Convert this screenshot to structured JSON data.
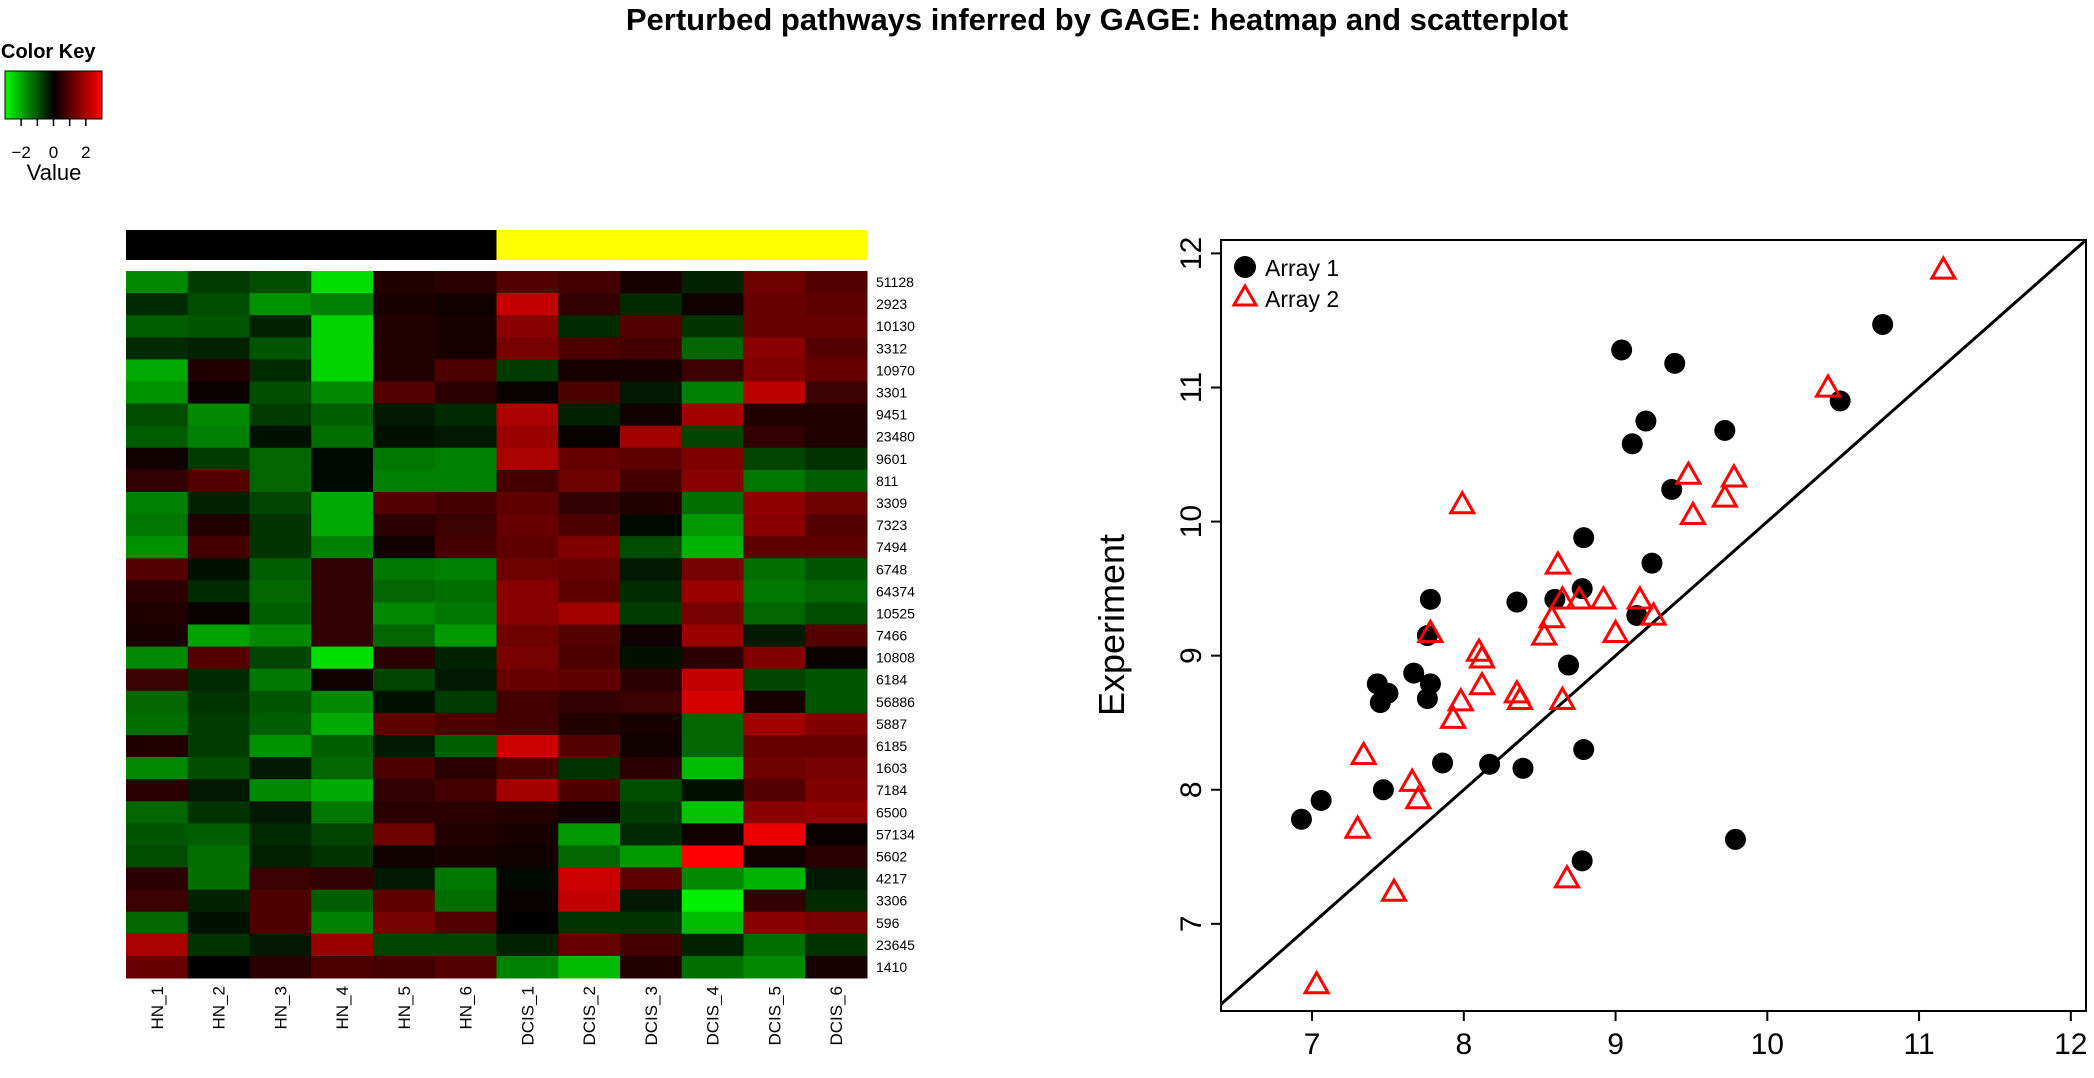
{
  "title": "Perturbed pathways inferred by GAGE: heatmap and scatterplot",
  "colors": {
    "low": "#00ff00",
    "mid": "#000000",
    "high": "#ff0000",
    "group_hn": "#000000",
    "group_dcis": "#ffff00",
    "array1": "#000000",
    "array2": "#ff0000"
  },
  "chart_data": [
    {
      "type": "heatmap",
      "color_key": {
        "title": "Color Key",
        "label": "Value",
        "ticks": [
          "−2",
          "0",
          "2"
        ],
        "tick_values": [
          -2,
          0,
          2
        ],
        "range": [
          -3,
          3
        ]
      },
      "columns": [
        "HN_1",
        "HN_2",
        "HN_3",
        "HN_4",
        "HN_5",
        "HN_6",
        "DCIS_1",
        "DCIS_2",
        "DCIS_3",
        "DCIS_4",
        "DCIS_5",
        "DCIS_6"
      ],
      "column_groups": [
        "HN",
        "HN",
        "HN",
        "HN",
        "HN",
        "HN",
        "DCIS",
        "DCIS",
        "DCIS",
        "DCIS",
        "DCIS",
        "DCIS"
      ],
      "rows": [
        "51128",
        "2923",
        "10130",
        "3312",
        "10970",
        "3301",
        "9451",
        "23480",
        "9601",
        "811",
        "3309",
        "7323",
        "7494",
        "6748",
        "64374",
        "10525",
        "7466",
        "10808",
        "6184",
        "56886",
        "5887",
        "6185",
        "1603",
        "7184",
        "6500",
        "57134",
        "5602",
        "4217",
        "3306",
        "596",
        "23645",
        "1410"
      ],
      "values": [
        [
          -1.6,
          -0.7,
          -0.9,
          -2.6,
          0.4,
          0.5,
          1.0,
          0.8,
          0.3,
          -0.4,
          1.3,
          1.0
        ],
        [
          -0.5,
          -0.9,
          -1.7,
          -1.5,
          0.3,
          0.2,
          2.3,
          0.6,
          -0.5,
          0.2,
          1.2,
          1.1
        ],
        [
          -1.1,
          -1.0,
          -0.4,
          -2.5,
          0.4,
          0.3,
          1.6,
          -0.5,
          1.0,
          -0.6,
          1.2,
          1.2
        ],
        [
          -0.5,
          -0.4,
          -1.0,
          -2.5,
          0.4,
          0.3,
          1.4,
          0.9,
          0.8,
          -1.2,
          1.6,
          1.0
        ],
        [
          -2.0,
          0.4,
          -0.5,
          -2.5,
          0.4,
          0.9,
          -0.7,
          0.3,
          0.3,
          0.7,
          1.5,
          1.2
        ],
        [
          -1.7,
          0.1,
          -0.9,
          -1.6,
          1.0,
          0.5,
          0.1,
          0.9,
          -0.3,
          -1.5,
          2.2,
          0.7
        ],
        [
          -0.9,
          -1.6,
          -0.7,
          -1.1,
          -0.3,
          -0.5,
          2.0,
          -0.4,
          0.2,
          1.9,
          0.4,
          0.4
        ],
        [
          -1.1,
          -1.5,
          -0.2,
          -1.3,
          -0.2,
          -0.3,
          1.8,
          0.1,
          1.9,
          -0.8,
          0.6,
          0.4
        ],
        [
          0.2,
          -0.7,
          -1.2,
          -0.1,
          -1.4,
          -1.5,
          2.0,
          1.2,
          1.1,
          1.5,
          -0.8,
          -0.6
        ],
        [
          0.6,
          1.0,
          -1.2,
          -0.1,
          -1.5,
          -1.5,
          0.8,
          1.3,
          0.8,
          1.6,
          -1.4,
          -1.1
        ],
        [
          -1.5,
          -0.4,
          -0.8,
          -2.0,
          1.0,
          0.8,
          1.1,
          0.6,
          0.4,
          -1.3,
          1.7,
          1.3
        ],
        [
          -1.4,
          0.4,
          -0.6,
          -2.0,
          0.5,
          0.7,
          1.2,
          0.9,
          -0.1,
          -1.8,
          1.6,
          1.0
        ],
        [
          -1.7,
          0.8,
          -0.6,
          -1.5,
          0.2,
          0.8,
          1.1,
          1.5,
          -0.9,
          -2.1,
          1.1,
          1.1
        ],
        [
          1.0,
          -0.2,
          -1.1,
          0.6,
          -1.4,
          -1.5,
          1.3,
          1.2,
          -0.3,
          1.4,
          -1.3,
          -1.0
        ],
        [
          0.5,
          -0.5,
          -1.2,
          0.6,
          -1.2,
          -1.3,
          1.6,
          1.1,
          -0.5,
          1.8,
          -1.4,
          -1.2
        ],
        [
          0.4,
          0.1,
          -1.1,
          0.6,
          -1.6,
          -1.4,
          1.6,
          1.9,
          -0.7,
          1.4,
          -1.2,
          -0.9
        ],
        [
          0.3,
          -1.9,
          -1.6,
          0.6,
          -1.2,
          -1.8,
          1.3,
          1.0,
          0.2,
          1.8,
          -0.3,
          1.0
        ],
        [
          -1.6,
          1.0,
          -0.8,
          -2.6,
          0.5,
          -0.4,
          1.4,
          0.9,
          -0.2,
          0.5,
          1.5,
          0.1
        ],
        [
          0.7,
          -0.5,
          -1.4,
          0.2,
          -0.8,
          -0.3,
          1.2,
          1.1,
          0.5,
          2.3,
          -0.8,
          -1.0
        ],
        [
          -1.2,
          -0.6,
          -1.0,
          -1.6,
          -0.2,
          -0.7,
          0.8,
          0.6,
          0.7,
          2.5,
          0.3,
          -1.0
        ],
        [
          -1.3,
          -0.7,
          -1.1,
          -2.0,
          1.1,
          0.9,
          0.8,
          0.4,
          0.3,
          -1.2,
          1.9,
          1.5
        ],
        [
          0.4,
          -0.7,
          -1.7,
          -1.1,
          -0.3,
          -1.1,
          2.4,
          1.0,
          0.2,
          -1.2,
          1.2,
          1.2
        ],
        [
          -1.6,
          -0.9,
          -0.3,
          -1.2,
          0.9,
          0.5,
          0.9,
          -0.6,
          0.5,
          -2.2,
          1.3,
          1.4
        ],
        [
          0.5,
          -0.3,
          -1.6,
          -2.0,
          0.6,
          0.8,
          1.9,
          0.9,
          -0.9,
          -0.2,
          1.0,
          1.5
        ],
        [
          -1.2,
          -0.6,
          -0.3,
          -1.4,
          0.5,
          0.5,
          0.4,
          0.2,
          -0.7,
          -2.3,
          1.6,
          1.7
        ],
        [
          -1.0,
          -1.1,
          -0.5,
          -0.8,
          1.3,
          0.4,
          0.3,
          -1.8,
          -0.5,
          0.2,
          2.8,
          0.1
        ],
        [
          -0.9,
          -1.3,
          -0.4,
          -0.6,
          0.2,
          0.3,
          0.2,
          -1.2,
          -1.8,
          3.0,
          0.2,
          0.5
        ],
        [
          0.5,
          -1.3,
          0.7,
          0.6,
          -0.3,
          -1.4,
          -0.1,
          2.4,
          1.1,
          -1.6,
          -2.1,
          -0.3
        ],
        [
          0.7,
          -0.4,
          0.9,
          -1.1,
          1.1,
          -1.3,
          0.1,
          2.3,
          -0.3,
          -2.8,
          0.6,
          -0.5
        ],
        [
          -1.2,
          -0.2,
          0.9,
          -1.5,
          1.4,
          1.0,
          0.0,
          -0.6,
          -0.6,
          -2.2,
          1.6,
          1.4
        ],
        [
          2.0,
          -0.6,
          -0.3,
          1.8,
          -0.8,
          -0.8,
          -0.4,
          1.2,
          0.8,
          -0.4,
          -1.3,
          -0.6
        ],
        [
          1.2,
          0.0,
          0.5,
          0.9,
          0.8,
          1.0,
          -1.5,
          -2.2,
          0.4,
          -1.3,
          -1.6,
          0.3
        ]
      ]
    },
    {
      "type": "scatter",
      "xlabel": "",
      "ylabel": "Experiment",
      "xlim": [
        6.4,
        12.1
      ],
      "ylim": [
        6.35,
        12.1
      ],
      "xticks": [
        7,
        8,
        9,
        10,
        11,
        12
      ],
      "yticks": [
        7,
        8,
        9,
        10,
        11,
        12
      ],
      "reference_line": {
        "slope": 1,
        "intercept": 0
      },
      "legend": {
        "position": "top-left",
        "entries": [
          "Array 1",
          "Array 2"
        ]
      },
      "series": [
        {
          "name": "Array 1",
          "marker": "filled-circle",
          "points": [
            [
              6.93,
              7.78
            ],
            [
              7.06,
              7.92
            ],
            [
              7.43,
              8.79
            ],
            [
              7.45,
              8.65
            ],
            [
              7.5,
              8.72
            ],
            [
              7.47,
              8.0
            ],
            [
              7.67,
              8.87
            ],
            [
              7.76,
              8.68
            ],
            [
              7.78,
              8.79
            ],
            [
              7.76,
              9.15
            ],
            [
              7.78,
              9.42
            ],
            [
              7.86,
              8.2
            ],
            [
              8.17,
              8.19
            ],
            [
              8.35,
              9.4
            ],
            [
              8.39,
              8.16
            ],
            [
              8.6,
              9.42
            ],
            [
              8.69,
              8.93
            ],
            [
              8.78,
              9.5
            ],
            [
              8.79,
              9.88
            ],
            [
              8.79,
              8.3
            ],
            [
              8.78,
              7.47
            ],
            [
              9.04,
              11.28
            ],
            [
              9.11,
              10.58
            ],
            [
              9.14,
              9.3
            ],
            [
              9.2,
              10.75
            ],
            [
              9.24,
              9.69
            ],
            [
              9.37,
              10.24
            ],
            [
              9.39,
              11.18
            ],
            [
              9.72,
              10.68
            ],
            [
              9.79,
              7.63
            ],
            [
              10.48,
              10.9
            ],
            [
              10.76,
              11.47
            ]
          ]
        },
        {
          "name": "Array 2",
          "marker": "open-triangle",
          "points": [
            [
              7.03,
              6.55
            ],
            [
              7.3,
              7.71
            ],
            [
              7.34,
              8.26
            ],
            [
              7.54,
              7.24
            ],
            [
              7.66,
              8.06
            ],
            [
              7.7,
              7.93
            ],
            [
              7.78,
              9.17
            ],
            [
              7.93,
              8.53
            ],
            [
              7.98,
              8.66
            ],
            [
              7.99,
              10.13
            ],
            [
              8.1,
              9.03
            ],
            [
              8.12,
              8.98
            ],
            [
              8.12,
              8.78
            ],
            [
              8.35,
              8.72
            ],
            [
              8.37,
              8.67
            ],
            [
              8.53,
              9.15
            ],
            [
              8.58,
              9.28
            ],
            [
              8.62,
              9.68
            ],
            [
              8.65,
              9.42
            ],
            [
              8.65,
              8.67
            ],
            [
              8.68,
              7.34
            ],
            [
              8.76,
              9.42
            ],
            [
              8.92,
              9.42
            ],
            [
              9.0,
              9.17
            ],
            [
              9.16,
              9.42
            ],
            [
              9.25,
              9.3
            ],
            [
              9.48,
              10.35
            ],
            [
              9.51,
              10.05
            ],
            [
              9.72,
              10.18
            ],
            [
              9.78,
              10.33
            ],
            [
              10.4,
              11.0
            ],
            [
              11.16,
              11.88
            ]
          ]
        }
      ]
    }
  ]
}
